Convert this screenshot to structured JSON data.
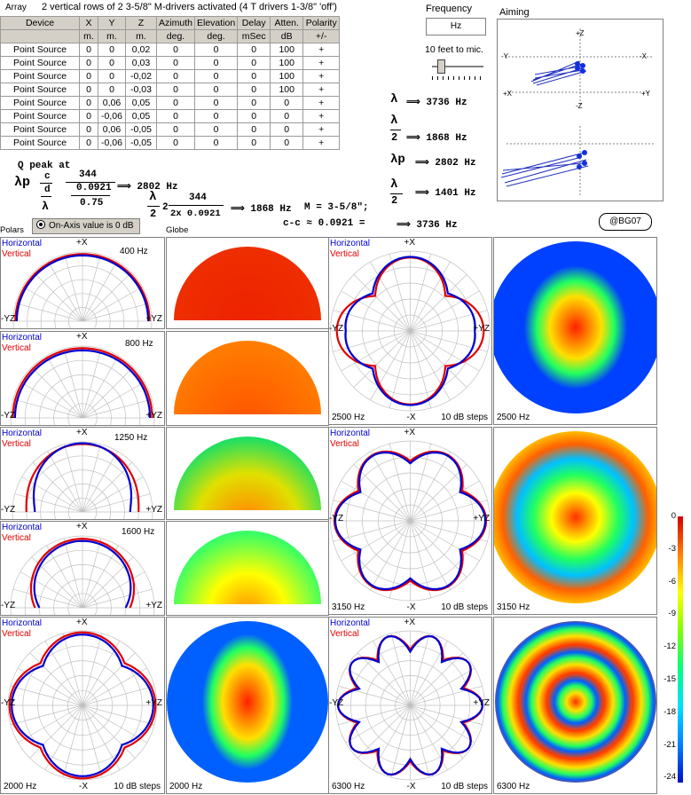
{
  "array_label": "Array",
  "title": "2 vertical rows of 2 3-5/8\" M-drivers activated (4 T drivers 1-3/8\" 'off')",
  "table": {
    "headers": [
      "Device",
      "X",
      "Y",
      "Z",
      "Azimuth",
      "Elevation",
      "Delay",
      "Atten.",
      "Polarity"
    ],
    "units": [
      "",
      "m.",
      "m.",
      "m.",
      "deg.",
      "deg.",
      "mSec",
      "dB",
      "+/-"
    ],
    "rows": [
      [
        "Point Source",
        "0",
        "0",
        "0,02",
        "0",
        "0",
        "0",
        "100",
        "+"
      ],
      [
        "Point Source",
        "0",
        "0",
        "0,03",
        "0",
        "0",
        "0",
        "100",
        "+"
      ],
      [
        "Point Source",
        "0",
        "0",
        "-0,02",
        "0",
        "0",
        "0",
        "100",
        "+"
      ],
      [
        "Point Source",
        "0",
        "0",
        "-0,03",
        "0",
        "0",
        "0",
        "100",
        "+"
      ],
      [
        "Point Source",
        "0",
        "0,06",
        "0,05",
        "0",
        "0",
        "0",
        "0",
        "+"
      ],
      [
        "Point Source",
        "0",
        "-0,06",
        "0,05",
        "0",
        "0",
        "0",
        "0",
        "+"
      ],
      [
        "Point Source",
        "0",
        "0,06",
        "-0,05",
        "0",
        "0",
        "0",
        "0",
        "+"
      ],
      [
        "Point Source",
        "0",
        "-0,06",
        "-0,05",
        "0",
        "0",
        "0",
        "0",
        "+"
      ]
    ]
  },
  "frequency": {
    "label": "Frequency",
    "unit": "Hz",
    "distance": "10 feet to mic.",
    "slider_level": 0.15
  },
  "aiming_label": "Aiming",
  "axes": {
    "pz": "+Z",
    "nz": "-Z",
    "ny": "-Y",
    "nx": "-X",
    "px": "+X",
    "py": "+Y"
  },
  "formulas": {
    "lambda": "⟹ 3736 Hz",
    "half": "⟹ 1868 Hz",
    "lp": "⟹ 2802 Hz",
    "lp2": "⟹ 1401 Hz",
    "qpeak": "Q peak at",
    "c": "c",
    "d": "d",
    "eq344": "344",
    "d0921": "0.0921",
    "d075": "0.75",
    "res2802": "⟹ 2802 Hz",
    "res1868": "⟹ 1868 Hz",
    "m": "M = 3-5/8\";",
    "cc": "c-c ≈ 0.0921 = ",
    "res3736": "⟹ 3736 Hz",
    "twox": "2x 0.0921",
    "lam": "λ",
    "two": "2",
    "lamp": "λp"
  },
  "bg07": "@BG07",
  "onaxis": "On-Axis value is 0 dB",
  "polars_label": "Polars",
  "globe_label": "Globe",
  "legend_h": "Horizontal",
  "legend_v": "Vertical",
  "plus_x": "+X",
  "minus_x": "-X",
  "yz_l": "-YZ",
  "yz_r": "+YZ",
  "steps": "10 dB steps",
  "freqs": [
    "400 Hz",
    "800 Hz",
    "1250 Hz",
    "1600 Hz",
    "2000 Hz",
    "2500 Hz",
    "3150 Hz",
    "6300 Hz"
  ],
  "colorbar": [
    "0",
    "-3",
    "-6",
    "-9",
    "-12",
    "-15",
    "-18",
    "-21",
    "-24"
  ],
  "colors": {
    "horizontal": "#0000d0",
    "vertical": "#e00000",
    "panel_bg": "#d4d0c8"
  }
}
